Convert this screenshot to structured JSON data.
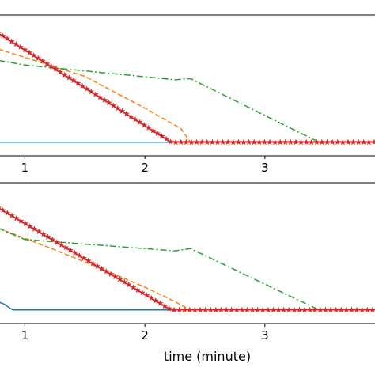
{
  "chart_data": [
    {
      "type": "line",
      "xlabel": "",
      "ylabel": "",
      "xticks": [
        1,
        2,
        3
      ],
      "xlim": [
        0.78,
        3.93
      ],
      "ylim": [
        -0.12,
        1.12
      ],
      "grid": false,
      "series": [
        {
          "color": "#1f77b4",
          "dash": "solid",
          "marker": "none",
          "x": [
            0.78,
            3.93
          ],
          "y": [
            0,
            0
          ]
        },
        {
          "color": "#ff7f0e",
          "dash": "dashed",
          "marker": "none",
          "x": [
            0.78,
            1.5,
            2.0,
            2.3,
            2.38,
            3.93
          ],
          "y": [
            0.82,
            0.58,
            0.3,
            0.12,
            0,
            0
          ]
        },
        {
          "color": "#2ca02c",
          "dash": "dashdot",
          "marker": "none",
          "x": [
            0.78,
            1.0,
            2.25,
            2.38,
            3.45,
            3.93
          ],
          "y": [
            0.72,
            0.68,
            0.55,
            0.56,
            0,
            0
          ]
        },
        {
          "color": "#d62728",
          "dash": "solid",
          "marker": "star",
          "x": [
            0.78,
            2.22,
            2.5,
            3.0,
            3.5,
            3.93
          ],
          "y": [
            0.96,
            0,
            0,
            0,
            0,
            0
          ]
        }
      ]
    },
    {
      "type": "line",
      "xlabel": "time (minute)",
      "ylabel": "",
      "xticks": [
        1,
        2,
        3
      ],
      "xlim": [
        0.78,
        3.93
      ],
      "ylim": [
        -0.12,
        1.12
      ],
      "grid": false,
      "series": [
        {
          "color": "#1f77b4",
          "dash": "solid",
          "marker": "none",
          "x": [
            0.78,
            0.83,
            0.87,
            0.9,
            1.0,
            3.93
          ],
          "y": [
            0.07,
            0.05,
            0.02,
            0,
            0,
            0
          ]
        },
        {
          "color": "#ff7f0e",
          "dash": "dashed",
          "marker": "none",
          "x": [
            0.78,
            1.2,
            1.6,
            2.0,
            2.2,
            2.38,
            3.93
          ],
          "y": [
            0.72,
            0.55,
            0.38,
            0.2,
            0.1,
            0,
            0
          ]
        },
        {
          "color": "#2ca02c",
          "dash": "dashdot",
          "marker": "none",
          "x": [
            0.78,
            1.0,
            2.25,
            2.38,
            3.45,
            3.93
          ],
          "y": [
            0.72,
            0.62,
            0.52,
            0.54,
            0,
            0
          ]
        },
        {
          "color": "#d62728",
          "dash": "solid",
          "marker": "star",
          "x": [
            0.78,
            2.22,
            2.5,
            3.0,
            3.5,
            3.93
          ],
          "y": [
            0.9,
            0,
            0,
            0,
            0,
            0
          ]
        }
      ]
    }
  ]
}
